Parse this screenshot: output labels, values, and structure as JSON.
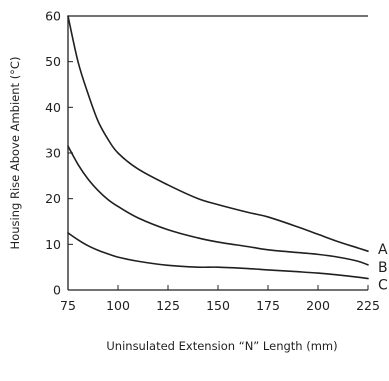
{
  "chart_data": {
    "type": "line",
    "title": "",
    "xlabel": "Uninsulated Extension “N” Length (mm)",
    "ylabel": "Housing Rise Above Ambient (°C)",
    "xlim": [
      75,
      225
    ],
    "ylim": [
      0,
      60
    ],
    "xticks": [
      75,
      100,
      125,
      150,
      175,
      200,
      225
    ],
    "yticks": [
      0,
      10,
      20,
      30,
      40,
      50,
      60
    ],
    "grid": false,
    "top_border": true,
    "series": [
      {
        "name": "A",
        "x": [
          75,
          80,
          85,
          90,
          95,
          100,
          110,
          125,
          140,
          150,
          165,
          175,
          190,
          200,
          210,
          220,
          225
        ],
        "values": [
          60,
          50,
          43,
          37,
          33,
          30,
          26.5,
          23,
          20,
          18.7,
          17,
          16,
          13.8,
          12.2,
          10.6,
          9.2,
          8.5
        ]
      },
      {
        "name": "B",
        "x": [
          75,
          80,
          85,
          90,
          95,
          100,
          110,
          125,
          140,
          150,
          165,
          175,
          190,
          200,
          210,
          220,
          225
        ],
        "values": [
          31.5,
          27.5,
          24.3,
          21.8,
          19.8,
          18.3,
          15.8,
          13.2,
          11.4,
          10.5,
          9.5,
          8.8,
          8.2,
          7.8,
          7.2,
          6.3,
          5.5
        ]
      },
      {
        "name": "C",
        "x": [
          75,
          80,
          85,
          90,
          95,
          100,
          110,
          125,
          140,
          150,
          165,
          175,
          190,
          200,
          210,
          220,
          225
        ],
        "values": [
          12.5,
          11,
          9.7,
          8.7,
          7.9,
          7.2,
          6.3,
          5.4,
          5.0,
          5.0,
          4.7,
          4.4,
          4.0,
          3.7,
          3.3,
          2.8,
          2.5
        ]
      }
    ]
  }
}
